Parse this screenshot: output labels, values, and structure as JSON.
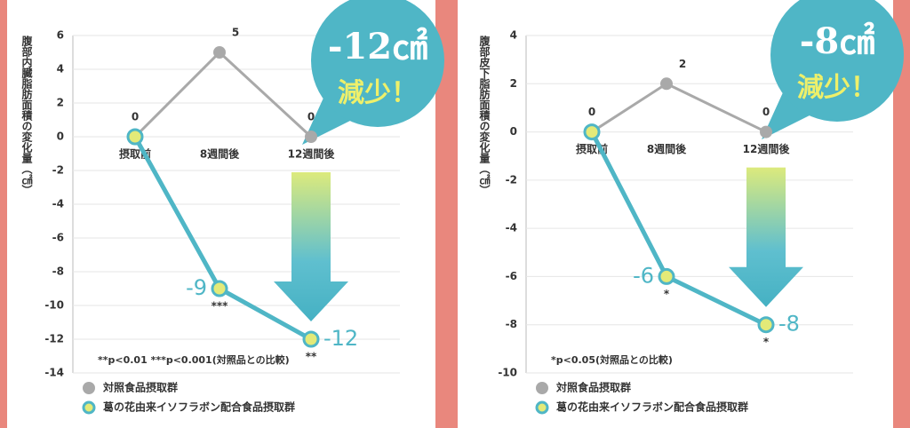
{
  "chart_data": [
    {
      "type": "line",
      "y_label": "腹部内臓脂肪面積の変化量（㎠）",
      "categories": [
        "摂取前",
        "8週間後",
        "12週間後"
      ],
      "series": [
        {
          "name": "対照食品摂取群",
          "color": "#a9a9a9",
          "values": [
            0,
            5,
            0
          ]
        },
        {
          "name": "葛の花由来イソフラボン配合食品摂取群",
          "color": "#4fb6c6",
          "values": [
            0,
            -9,
            -12
          ]
        }
      ],
      "significance": [
        null,
        "***",
        "**"
      ],
      "note": "**p<0.01 ***p<0.001(対照品との比較)",
      "callout": [
        "-12㎠",
        "減少！"
      ],
      "ylim": [
        -14,
        6
      ],
      "yticks": [
        6,
        4,
        2,
        0,
        -2,
        -4,
        -6,
        -8,
        -10,
        -12,
        -14
      ],
      "grid": true
    },
    {
      "type": "line",
      "y_label": "腹部皮下脂肪面積の変化量（㎠）",
      "categories": [
        "摂取前",
        "8週間後",
        "12週間後"
      ],
      "series": [
        {
          "name": "対照食品摂取群",
          "color": "#a9a9a9",
          "values": [
            0,
            2,
            0
          ]
        },
        {
          "name": "葛の花由来イソフラボン配合食品摂取群",
          "color": "#4fb6c6",
          "values": [
            0,
            -6,
            -8
          ]
        }
      ],
      "significance": [
        null,
        "*",
        "*"
      ],
      "note": "*p<0.05(対照品との比較)",
      "callout": [
        "-8㎠",
        "減少！"
      ],
      "ylim": [
        -10,
        4
      ],
      "yticks": [
        4,
        2,
        0,
        -2,
        -4,
        -6,
        -8,
        -10
      ],
      "grid": true
    }
  ]
}
